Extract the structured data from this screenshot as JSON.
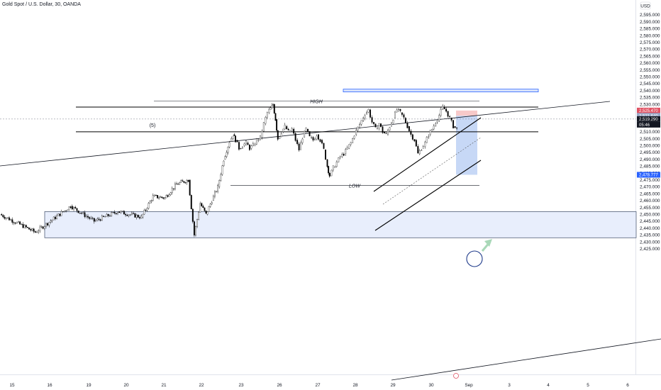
{
  "header": {
    "title": "Gold Spot / U.S. Dollar, 30, OANDA"
  },
  "axis": {
    "currency_label": "USD"
  },
  "chart_data": {
    "type": "candlestick",
    "title": "Gold Spot / U.S. Dollar, 30, OANDA",
    "ylim": [
      2422,
      2600
    ],
    "y_ticks": [
      "2,595.000",
      "2,590.000",
      "2,585.000",
      "2,580.000",
      "2,575.000",
      "2,570.000",
      "2,565.000",
      "2,560.000",
      "2,555.000",
      "2,550.000",
      "2,545.000",
      "2,540.000",
      "2,535.000",
      "2,530.000",
      "2,525.000",
      "2,520.000",
      "2,515.000",
      "2,510.000",
      "2,505.000",
      "2,500.000",
      "2,495.000",
      "2,490.000",
      "2,485.000",
      "2,480.000",
      "2,475.000",
      "2,470.000",
      "2,465.000",
      "2,460.000",
      "2,455.000",
      "2,450.000",
      "2,445.000",
      "2,440.000",
      "2,435.000",
      "2,430.000",
      "2,425.000"
    ],
    "x_ticks": [
      "15",
      "16",
      "19",
      "20",
      "21",
      "22",
      "23",
      "26",
      "27",
      "28",
      "29",
      "30",
      "Sep",
      "3",
      "4",
      "5",
      "6"
    ],
    "grid": false,
    "price_path": [
      [
        0,
        2450
      ],
      [
        3,
        2437
      ],
      [
        6,
        2456
      ],
      [
        8,
        2445
      ],
      [
        10,
        2452
      ],
      [
        12,
        2448
      ],
      [
        13,
        2463
      ],
      [
        14,
        2462
      ],
      [
        15,
        2472
      ],
      [
        16,
        2475
      ],
      [
        16.5,
        2435
      ],
      [
        17,
        2458
      ],
      [
        17.5,
        2450
      ],
      [
        18,
        2460
      ],
      [
        18.5,
        2470
      ],
      [
        19,
        2490
      ],
      [
        19.5,
        2503
      ],
      [
        19.8,
        2508
      ],
      [
        20,
        2504
      ],
      [
        20.3,
        2498
      ],
      [
        20.6,
        2500
      ],
      [
        20.9,
        2502
      ],
      [
        21.2,
        2498
      ],
      [
        21.5,
        2500
      ],
      [
        21.8,
        2504
      ],
      [
        22.1,
        2506
      ],
      [
        22.4,
        2516
      ],
      [
        22.7,
        2524
      ],
      [
        23,
        2527
      ],
      [
        23.2,
        2530
      ],
      [
        23.4,
        2519
      ],
      [
        23.6,
        2505
      ],
      [
        23.9,
        2510
      ],
      [
        24.2,
        2514
      ],
      [
        24.5,
        2510
      ],
      [
        24.8,
        2512
      ],
      [
        25.1,
        2504
      ],
      [
        25.4,
        2497
      ],
      [
        25.7,
        2506
      ],
      [
        26,
        2512
      ],
      [
        26.3,
        2506
      ],
      [
        26.6,
        2504
      ],
      [
        26.9,
        2508
      ],
      [
        27.2,
        2504
      ],
      [
        27.5,
        2497
      ],
      [
        27.8,
        2485
      ],
      [
        28,
        2478
      ],
      [
        28.3,
        2484
      ],
      [
        28.6,
        2488
      ],
      [
        28.9,
        2492
      ],
      [
        29.2,
        2494
      ],
      [
        29.5,
        2498
      ],
      [
        29.8,
        2502
      ],
      [
        30.1,
        2508
      ],
      [
        30.4,
        2513
      ],
      [
        30.7,
        2518
      ],
      [
        31,
        2523
      ],
      [
        31.3,
        2526
      ],
      [
        31.6,
        2517
      ],
      [
        31.9,
        2512
      ],
      [
        32.2,
        2516
      ],
      [
        32.5,
        2510
      ],
      [
        32.8,
        2508
      ],
      [
        33.1,
        2514
      ],
      [
        33.4,
        2520
      ],
      [
        33.7,
        2526
      ],
      [
        34,
        2524
      ],
      [
        34.3,
        2520
      ],
      [
        34.6,
        2514
      ],
      [
        34.9,
        2508
      ],
      [
        35.2,
        2504
      ],
      [
        35.5,
        2494
      ],
      [
        35.8,
        2498
      ],
      [
        36.1,
        2502
      ],
      [
        36.4,
        2508
      ],
      [
        36.7,
        2512
      ],
      [
        37,
        2517
      ],
      [
        37.3,
        2522
      ],
      [
        37.6,
        2528
      ],
      [
        37.9,
        2525
      ],
      [
        38.2,
        2520
      ],
      [
        38.5,
        2514
      ],
      [
        38.8,
        2512
      ],
      [
        39.1,
        2517
      ],
      [
        39.4,
        2522
      ]
    ],
    "levels": [
      {
        "name": "HIGH",
        "value": 2528
      },
      {
        "name": "LOW",
        "value": 2471
      }
    ],
    "annotations": [
      "(5)",
      "HIGH",
      "LOW"
    ],
    "price_labels": [
      {
        "text": "2,525.470",
        "kind": "stop"
      },
      {
        "text": "2,521.640",
        "kind": "entry"
      },
      {
        "text": "2,519.290",
        "kind": "current"
      },
      {
        "text": "05:46",
        "kind": "current"
      },
      {
        "text": "2,478.777",
        "kind": "target"
      }
    ],
    "position": {
      "type": "short",
      "entry": 2521.64,
      "stop": 2525.47,
      "target": 2478.777
    },
    "zones": [
      {
        "name": "resistance-zone",
        "low": 2539,
        "high": 2541
      },
      {
        "name": "demand-zone",
        "low": 2433,
        "high": 2452
      }
    ],
    "channel": {
      "type": "ascending"
    },
    "colors": {
      "candle_up": "#ffffff",
      "candle_down": "#000000",
      "wick": "#000000",
      "stop_box": "#f7c9c9",
      "target_box": "#c7d8f6",
      "zone_fill": "#e8eefc",
      "zone_stroke": "#2962ff",
      "stop_label": "#e05263",
      "target_label": "#2962ff",
      "current_label": "#131722",
      "trendline": "#000000",
      "arrow": "#a9d8b8"
    }
  }
}
